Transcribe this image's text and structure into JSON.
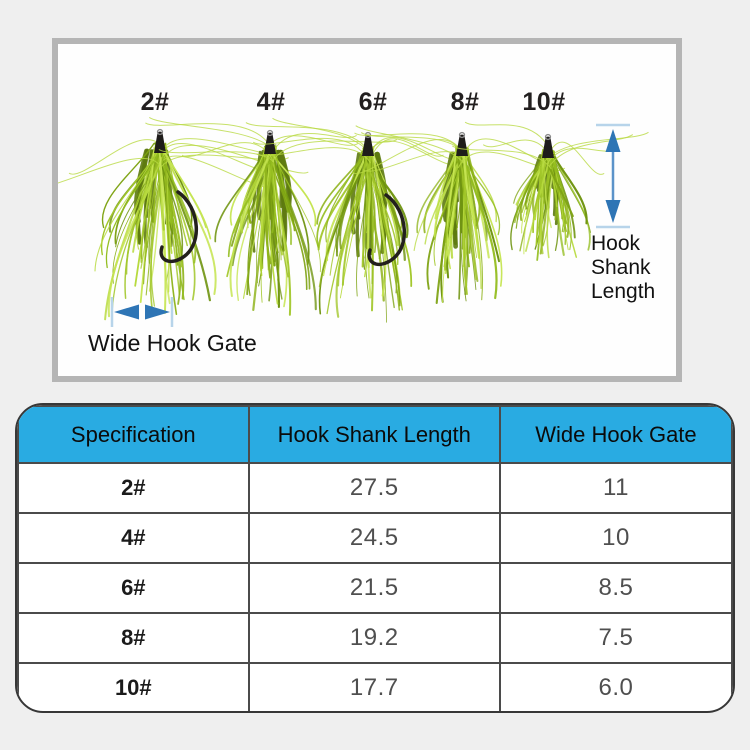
{
  "photo": {
    "size_labels": [
      "2#",
      "4#",
      "6#",
      "8#",
      "10#"
    ],
    "shank_label": "Hook Shank Length",
    "gate_label": "Wide Hook Gate"
  },
  "table": {
    "headers": [
      "Specification",
      "Hook Shank Length",
      "Wide Hook Gate"
    ],
    "rows": [
      [
        "2#",
        "27.5",
        "11"
      ],
      [
        "4#",
        "24.5",
        "10"
      ],
      [
        "6#",
        "21.5",
        "8.5"
      ],
      [
        "8#",
        "19.2",
        "7.5"
      ],
      [
        "10#",
        "17.7",
        "6.0"
      ]
    ]
  },
  "colors": {
    "header_blue": "#29abe2",
    "arrow_blue": "#2e75b5",
    "arrow_cap_blue": "#b7d4ea",
    "feather_green": "#a2c72a",
    "panel_border_gray": "#b5b5b5",
    "page_bg": "#efefef"
  }
}
